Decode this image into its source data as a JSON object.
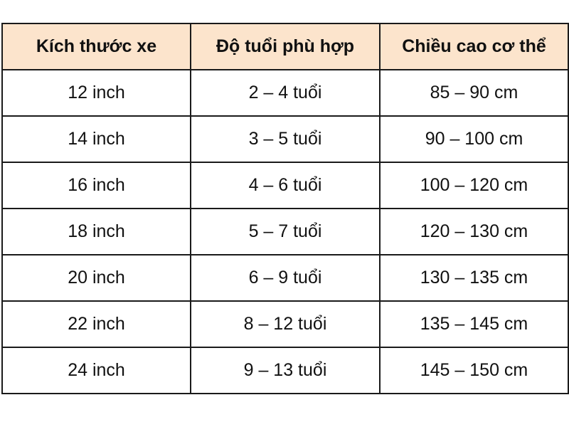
{
  "table": {
    "header_color": "#fce4cc",
    "headers": [
      "Kích thước xe",
      "Độ tuổi phù hợp",
      "Chiều cao cơ thể"
    ],
    "rows": [
      [
        "12 inch",
        "2 – 4 tuổi",
        "85 – 90 cm"
      ],
      [
        "14 inch",
        "3 – 5 tuổi",
        "90 – 100 cm"
      ],
      [
        "16 inch",
        "4 – 6 tuổi",
        "100 – 120 cm"
      ],
      [
        "18 inch",
        "5 – 7 tuổi",
        "120 – 130 cm"
      ],
      [
        "20 inch",
        "6 – 9 tuổi",
        "130 – 135 cm"
      ],
      [
        "22 inch",
        "8 – 12 tuổi",
        "135 – 145 cm"
      ],
      [
        "24 inch",
        "9 – 13 tuổi",
        "145 – 150 cm"
      ]
    ]
  }
}
